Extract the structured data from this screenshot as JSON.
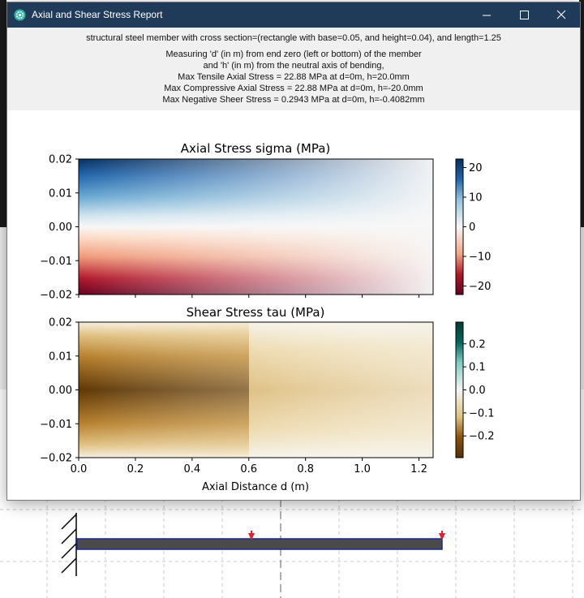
{
  "window": {
    "title": "Axial and Shear Stress Report"
  },
  "report": {
    "member_line": "structural steel member with cross section=(rectangle with base=0.05, and height=0.04), and length=1.25",
    "measuring_line1": "Measuring 'd' (in m) from end zero (left or bottom) of the member",
    "measuring_line2": "and 'h' (in m) from the neutral axis of bending,",
    "max_tensile": "Max Tensile Axial Stress = 22.88 MPa at d=0m, h=20.0mm",
    "max_compressive": "Max Compressive Axial Stress = 22.88 MPa at d=0m, h=-20.0mm",
    "max_negative_shear": "Max Negative Sheer Stress = 0.2943 MPa at d=0m, h=-0.4082mm"
  },
  "chart_data": [
    {
      "type": "heatmap",
      "title": "Axial Stress sigma (MPa)",
      "xlabel": "",
      "ylabel": "",
      "xlim": [
        0,
        1.25
      ],
      "ylim": [
        -0.02,
        0.02
      ],
      "yticks": [
        "0.02",
        "0.01",
        "0.00",
        "−0.01",
        "−0.02"
      ],
      "colorbar": {
        "range": [
          -22.88,
          22.88
        ],
        "ticks": [
          "20",
          "10",
          "0",
          "−10",
          "−20"
        ]
      }
    },
    {
      "type": "heatmap",
      "title": "Shear Stress tau (MPa)",
      "xlabel": "Axial Distance d (m)",
      "ylabel": "",
      "xlim": [
        0,
        1.25
      ],
      "ylim": [
        -0.02,
        0.02
      ],
      "xticks": [
        "0.0",
        "0.2",
        "0.4",
        "0.6",
        "0.8",
        "1.0",
        "1.2"
      ],
      "yticks": [
        "0.02",
        "0.01",
        "0.00",
        "−0.01",
        "−0.02"
      ],
      "colorbar": {
        "range": [
          -0.2943,
          0.2943
        ],
        "ticks": [
          "0.2",
          "0.1",
          "0.0",
          "−0.1",
          "−0.2"
        ]
      }
    }
  ],
  "colors": {
    "titlebar": "#203b5a",
    "report_bg": "#f0f0f0",
    "beam": "#4a4a4a",
    "beam_border": "#1f2a8a",
    "load_marker": "#e0202a"
  }
}
